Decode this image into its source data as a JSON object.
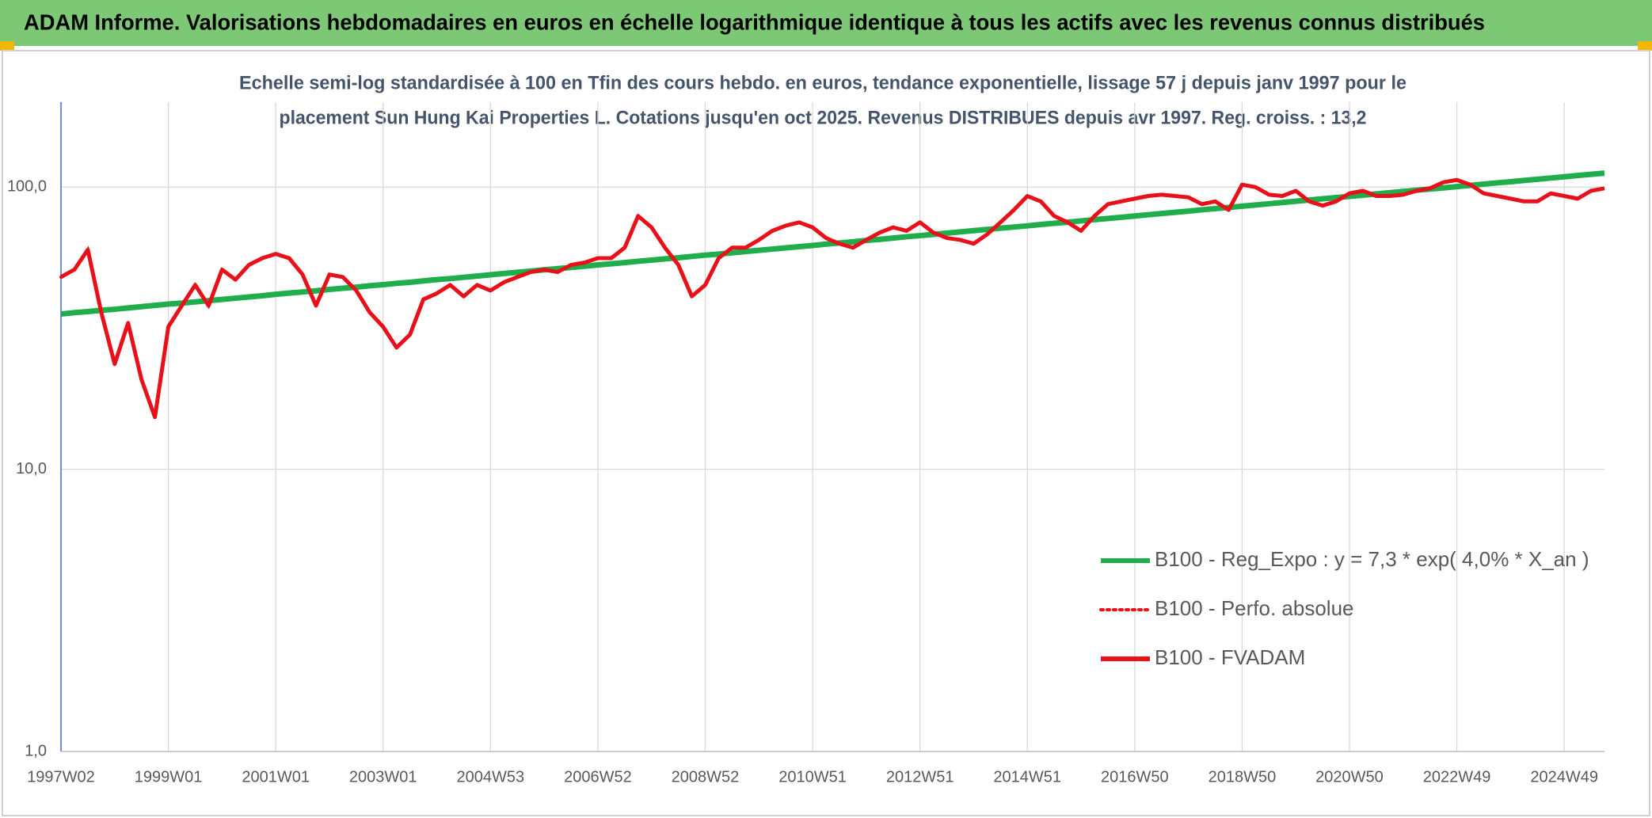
{
  "chart_data": {
    "type": "line",
    "title": "ADAM Informe. Valorisations hebdomadaires en euros en échelle logarithmique identique à tous les actifs avec les revenus connus distribués",
    "subtitle": [
      "Echelle semi-log standardisée à 100 en Tfin des cours hebdo. en euros, tendance exponentielle, lissage 57 j depuis janv 1997 pour le",
      "placement Sun Hung Kai Properties L. Cotations jusqu'en oct 2025. Revenus DISTRIBUES depuis avr 1997. Reg. croiss. : 13,2"
    ],
    "categories": [
      "1997W02",
      null,
      null,
      null,
      null,
      null,
      null,
      null,
      "1999W01",
      null,
      null,
      null,
      null,
      null,
      null,
      null,
      "2001W01",
      null,
      null,
      null,
      null,
      null,
      null,
      null,
      "2003W01",
      null,
      null,
      null,
      null,
      null,
      null,
      null,
      "2004W53",
      null,
      null,
      null,
      null,
      null,
      null,
      null,
      "2006W52",
      null,
      null,
      null,
      null,
      null,
      null,
      null,
      "2008W52",
      null,
      null,
      null,
      null,
      null,
      null,
      null,
      "2010W51",
      null,
      null,
      null,
      null,
      null,
      null,
      null,
      "2012W51",
      null,
      null,
      null,
      null,
      null,
      null,
      null,
      "2014W51",
      null,
      null,
      null,
      null,
      null,
      null,
      null,
      "2016W50",
      null,
      null,
      null,
      null,
      null,
      null,
      null,
      "2018W50",
      null,
      null,
      null,
      null,
      null,
      null,
      null,
      "2020W50",
      null,
      null,
      null,
      null,
      null,
      null,
      null,
      "2022W49",
      null,
      null,
      null,
      null,
      null,
      null,
      null,
      "2024W49",
      null,
      null,
      null
    ],
    "series": [
      {
        "name": "B100 - Reg_Expo : y = 7,3 * exp( 4,0% *  X_an )",
        "color": "#1fae4b",
        "style": "solid",
        "values": [
          35.5,
          35.9,
          36.2,
          36.6,
          36.9,
          37.3,
          37.7,
          38.1,
          38.5,
          38.8,
          39.2,
          39.6,
          40.0,
          40.4,
          40.8,
          41.2,
          41.7,
          42.1,
          42.5,
          42.9,
          43.4,
          43.8,
          44.2,
          44.7,
          45.1,
          45.6,
          46.0,
          46.5,
          47.0,
          47.4,
          47.9,
          48.4,
          48.9,
          49.4,
          49.9,
          50.4,
          50.9,
          51.4,
          51.9,
          52.4,
          53.0,
          53.5,
          54.0,
          54.6,
          55.1,
          55.7,
          56.2,
          56.8,
          57.4,
          57.9,
          58.5,
          59.1,
          59.7,
          60.3,
          60.9,
          61.5,
          62.1,
          62.8,
          63.4,
          64.0,
          64.7,
          65.3,
          66.0,
          66.7,
          67.3,
          68.0,
          68.7,
          69.4,
          70.1,
          70.8,
          71.5,
          72.2,
          72.9,
          73.7,
          74.4,
          75.1,
          75.9,
          76.7,
          77.4,
          78.2,
          79.0,
          79.8,
          80.6,
          81.4,
          82.2,
          83.1,
          83.9,
          84.7,
          85.6,
          86.4,
          87.3,
          88.2,
          89.1,
          90.0,
          90.9,
          91.8,
          92.7,
          93.6,
          94.6,
          95.5,
          96.5,
          97.5,
          98.4,
          99.4,
          100.4,
          101.4,
          102.5,
          103.5,
          104.5,
          105.6,
          106.6,
          107.7,
          108.8,
          109.9,
          111.0,
          112.1
        ]
      },
      {
        "name": "B100 - Perfo. absolue",
        "color": "#e8111a",
        "style": "dotted",
        "values": [
          48,
          51,
          60,
          36,
          23.6,
          33,
          20.8,
          15.3,
          32,
          38,
          45,
          38,
          51,
          47,
          53,
          56,
          58,
          56,
          49,
          38,
          49,
          48,
          43,
          36,
          32,
          27,
          30,
          40,
          42,
          45,
          41,
          45,
          43,
          46,
          48,
          50,
          51,
          50,
          53,
          54,
          56,
          56,
          61,
          79,
          72,
          61,
          53,
          41,
          45,
          56,
          61,
          61,
          65,
          70,
          73,
          75,
          72,
          66,
          63,
          61,
          65,
          69,
          72,
          70,
          75,
          69,
          66,
          65,
          63,
          68,
          75,
          83,
          93,
          89,
          79,
          75,
          70,
          79,
          87,
          89,
          91,
          93,
          94,
          93,
          92,
          87,
          89,
          83,
          102,
          100,
          94,
          93,
          97,
          89,
          86,
          89,
          95,
          97,
          93,
          93,
          94,
          97,
          99,
          104,
          106,
          102,
          95,
          93,
          91,
          89,
          89,
          95,
          93,
          91,
          97,
          99
        ]
      },
      {
        "name": "B100 - FVADAM",
        "color": "#e8111a",
        "style": "solid",
        "values": [
          48,
          51,
          60,
          36,
          23.6,
          33,
          20.8,
          15.3,
          32,
          38,
          45,
          38,
          51,
          47,
          53,
          56,
          58,
          56,
          49,
          38,
          49,
          48,
          43,
          36,
          32,
          27,
          30,
          40,
          42,
          45,
          41,
          45,
          43,
          46,
          48,
          50,
          51,
          50,
          53,
          54,
          56,
          56,
          61,
          79,
          72,
          61,
          53,
          41,
          45,
          56,
          61,
          61,
          65,
          70,
          73,
          75,
          72,
          66,
          63,
          61,
          65,
          69,
          72,
          70,
          75,
          69,
          66,
          65,
          63,
          68,
          75,
          83,
          93,
          89,
          79,
          75,
          70,
          79,
          87,
          89,
          91,
          93,
          94,
          93,
          92,
          87,
          89,
          83,
          102,
          100,
          94,
          93,
          97,
          89,
          86,
          89,
          95,
          97,
          93,
          93,
          94,
          97,
          99,
          104,
          106,
          102,
          95,
          93,
          91,
          89,
          89,
          95,
          93,
          91,
          97,
          99
        ]
      }
    ],
    "ylim": [
      1,
      200
    ],
    "yscale": "log",
    "yticks": [
      {
        "value": 1,
        "label": "1,0"
      },
      {
        "value": 10,
        "label": "10,0"
      },
      {
        "value": 100,
        "label": "100,0"
      }
    ],
    "grid": true,
    "legend": "lower right"
  }
}
